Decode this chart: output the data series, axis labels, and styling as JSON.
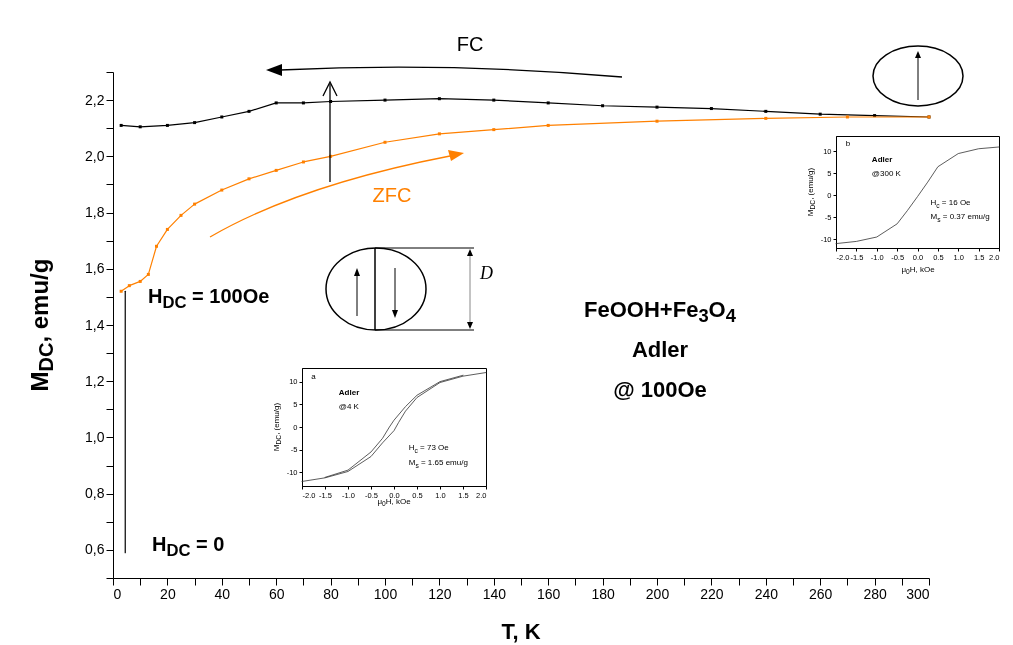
{
  "chart_data": [
    {
      "type": "line",
      "xlabel": "T, K",
      "ylabel": "M$_{DC}$, emu/g",
      "xlim": [
        0,
        300
      ],
      "ylim": [
        0.5,
        2.3
      ],
      "marker": "square",
      "xticks": [
        0,
        {
          "value": 10,
          "label": null
        },
        20,
        {
          "value": 30,
          "label": null
        },
        40,
        {
          "value": 50,
          "label": null
        },
        60,
        {
          "value": 70,
          "label": null
        },
        80,
        {
          "value": 90,
          "label": null
        },
        100,
        {
          "value": 110,
          "label": null
        },
        120,
        {
          "value": 130,
          "label": null
        },
        140,
        {
          "value": 150,
          "label": null
        },
        160,
        {
          "value": 170,
          "label": null
        },
        180,
        {
          "value": 190,
          "label": null
        },
        200,
        {
          "value": 210,
          "label": null
        },
        220,
        {
          "value": 230,
          "label": null
        },
        240,
        {
          "value": 250,
          "label": null
        },
        260,
        {
          "value": 270,
          "label": null
        },
        280,
        {
          "value": 290,
          "label": null
        },
        300
      ],
      "yticks": [
        {
          "value": 0.5,
          "label": null
        },
        {
          "value": 0.6,
          "label": "0,6"
        },
        {
          "value": 0.7,
          "label": null
        },
        {
          "value": 0.8,
          "label": "0,8"
        },
        {
          "value": 0.9,
          "label": null
        },
        {
          "value": 1.0,
          "label": "1,0"
        },
        {
          "value": 1.1,
          "label": null
        },
        {
          "value": 1.2,
          "label": "1,2"
        },
        {
          "value": 1.3,
          "label": null
        },
        {
          "value": 1.4,
          "label": "1,4"
        },
        {
          "value": 1.5,
          "label": null
        },
        {
          "value": 1.6,
          "label": "1,6"
        },
        {
          "value": 1.7,
          "label": null
        },
        {
          "value": 1.8,
          "label": "1,8"
        },
        {
          "value": 1.9,
          "label": null
        },
        {
          "value": 2.0,
          "label": "2,0"
        },
        {
          "value": 2.1,
          "label": null
        },
        {
          "value": 2.2,
          "label": "2,2"
        },
        {
          "value": 2.3,
          "label": null
        }
      ],
      "series": [
        {
          "name": "FC",
          "color": "#000000",
          "x": [
            3,
            10,
            20,
            30,
            40,
            50,
            60,
            70,
            80,
            100,
            120,
            140,
            160,
            180,
            200,
            220,
            240,
            260,
            280,
            300
          ],
          "values": [
            2.11,
            2.105,
            2.11,
            2.12,
            2.14,
            2.16,
            2.19,
            2.19,
            2.195,
            2.2,
            2.205,
            2.2,
            2.19,
            2.18,
            2.175,
            2.17,
            2.16,
            2.15,
            2.145,
            2.14
          ]
        },
        {
          "name": "ZFC",
          "color": "#ff8000",
          "x": [
            3,
            6,
            10,
            13,
            16,
            20,
            25,
            30,
            40,
            50,
            60,
            70,
            80,
            100,
            120,
            140,
            160,
            200,
            240,
            270,
            300
          ],
          "values": [
            1.52,
            1.54,
            1.555,
            1.58,
            1.68,
            1.74,
            1.79,
            1.83,
            1.88,
            1.92,
            1.95,
            1.98,
            2.0,
            2.05,
            2.08,
            2.095,
            2.11,
            2.125,
            2.135,
            2.14,
            2.14
          ]
        },
        {
          "color": "#000000",
          "marker": "none",
          "x": [
            4.5,
            4.5
          ],
          "values": [
            0.59,
            1.52
          ]
        }
      ],
      "annotations": [
        "H$_{DC}$ = 100Oe",
        "H$_{DC}$ = 0",
        "FeOOH+Fe$_{3}$O$_{4}$",
        "Adler",
        "@ 100Oe",
        "D"
      ]
    },
    {
      "type": "line",
      "xlabel": "μ$_{0}$H, kOe",
      "ylabel": "M$_{DC}$, (emu/g)",
      "xlim": [
        -2,
        2
      ],
      "ylim": [
        -12,
        13.5
      ],
      "xticks": [
        {
          "value": -2,
          "label": "-2.0"
        },
        {
          "value": -1.5,
          "label": "-1.5"
        },
        {
          "value": -1,
          "label": "-1.0"
        },
        {
          "value": -0.5,
          "label": "-0.5"
        },
        {
          "value": 0,
          "label": "0.0"
        },
        {
          "value": 0.5,
          "label": "0.5"
        },
        {
          "value": 1,
          "label": "1.0"
        },
        {
          "value": 1.5,
          "label": "1.5"
        },
        {
          "value": 2,
          "label": "2.0"
        }
      ],
      "yticks": [
        -10,
        -5,
        0,
        5,
        10
      ],
      "series": [
        {
          "color": "#333333",
          "x": [
            -2,
            -1.5,
            -1,
            -0.5,
            -0.25,
            0,
            0.25,
            0.5,
            1,
            1.5,
            2
          ],
          "values": [
            -11,
            -10.5,
            -9.5,
            -6.5,
            -3.5,
            -0.3,
            3,
            6.5,
            9.5,
            10.6,
            11
          ]
        }
      ],
      "annotations": [
        "b",
        "Adler",
        "@300 K",
        "H$_{c}$ = 16 Oe",
        "M$_{s}$ = 0.37 emu/g"
      ]
    },
    {
      "type": "line",
      "xlabel": "μ$_{0}$H, kOe",
      "ylabel": "M$_{DC}$, (emu/g)",
      "xlim": [
        -2,
        2
      ],
      "ylim": [
        -13,
        13
      ],
      "xticks": [
        {
          "value": -2,
          "label": "-2.0"
        },
        {
          "value": -1.5,
          "label": "-1.5"
        },
        {
          "value": -1,
          "label": "-1.0"
        },
        {
          "value": -0.5,
          "label": "-0.5"
        },
        {
          "value": 0,
          "label": "0.0"
        },
        {
          "value": 0.5,
          "label": "0.5"
        },
        {
          "value": 1,
          "label": "1.0"
        },
        {
          "value": 1.5,
          "label": "1.5"
        },
        {
          "value": 2,
          "label": "2.0"
        }
      ],
      "yticks": [
        -10,
        -5,
        0,
        5,
        10
      ],
      "series": [
        {
          "color": "#333333",
          "x": [
            -2,
            -1.5,
            -1,
            -0.5,
            -0.25,
            0,
            0.1,
            0.25,
            0.5,
            1,
            1.5,
            2
          ],
          "values": [
            -12,
            -11.2,
            -9.8,
            -6.5,
            -3.5,
            -0.8,
            1,
            3.5,
            6.5,
            9.8,
            11.2,
            12
          ]
        },
        {
          "color": "#333333",
          "x": [
            1.5,
            1,
            0.5,
            0.25,
            0,
            -0.1,
            -0.25,
            -0.5,
            -1,
            -1.5
          ],
          "values": [
            11.4,
            10,
            7,
            4.5,
            1.5,
            0,
            -2.5,
            -5.5,
            -9.5,
            -11.1
          ]
        }
      ],
      "annotations": [
        "a",
        "Adler",
        "@4 K",
        "H$_{c}$ = 73 Oe",
        "M$_{s}$ = 1.65 emu/g"
      ]
    }
  ]
}
